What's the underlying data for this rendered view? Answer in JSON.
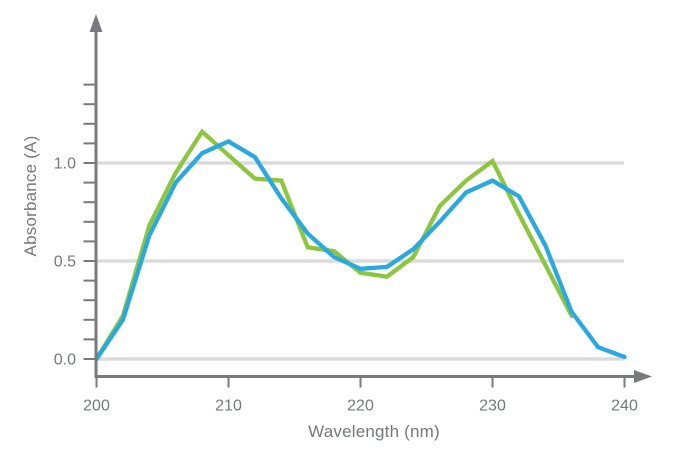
{
  "chart_data": {
    "type": "line",
    "title": "",
    "xlabel": "Wavelength (nm)",
    "ylabel": "Absorbance (A)",
    "xlim": [
      200,
      240
    ],
    "ylim": [
      0,
      1.45
    ],
    "grid": "horizontal only",
    "legend_position": "none",
    "gridlines_at": [
      0,
      0.5,
      1.0
    ],
    "x_ticks": [
      {
        "value": 200,
        "label": "200"
      },
      {
        "value": 210,
        "label": "210"
      },
      {
        "value": 220,
        "label": "220"
      },
      {
        "value": 230,
        "label": "230"
      },
      {
        "value": 240,
        "label": "240"
      }
    ],
    "y_ticks_labeled": [
      {
        "value": 0,
        "label": "0.0"
      },
      {
        "value": 0.5,
        "label": "0.5"
      },
      {
        "value": 1.0,
        "label": "1.0"
      }
    ],
    "y_minor_tick_step": 0.1,
    "y_minor_tick_max": 1.4,
    "series": [
      {
        "name": "green-spectrum",
        "color": "#8CC63F",
        "points": [
          [
            200,
            0.0
          ],
          [
            202,
            0.22
          ],
          [
            204,
            0.68
          ],
          [
            206,
            0.95
          ],
          [
            208,
            1.16
          ],
          [
            210,
            1.04
          ],
          [
            212,
            0.92
          ],
          [
            214,
            0.91
          ],
          [
            216,
            0.57
          ],
          [
            218,
            0.55
          ],
          [
            220,
            0.44
          ],
          [
            222,
            0.42
          ],
          [
            224,
            0.52
          ],
          [
            226,
            0.78
          ],
          [
            228,
            0.91
          ],
          [
            230,
            1.01
          ],
          [
            232,
            0.74
          ],
          [
            234,
            0.48
          ],
          [
            236,
            0.22
          ]
        ]
      },
      {
        "name": "blue-spectrum",
        "color": "#29A9E0",
        "points": [
          [
            200,
            0.0
          ],
          [
            202,
            0.2
          ],
          [
            204,
            0.63
          ],
          [
            206,
            0.9
          ],
          [
            208,
            1.05
          ],
          [
            210,
            1.11
          ],
          [
            212,
            1.03
          ],
          [
            214,
            0.82
          ],
          [
            216,
            0.64
          ],
          [
            218,
            0.52
          ],
          [
            220,
            0.46
          ],
          [
            222,
            0.47
          ],
          [
            224,
            0.56
          ],
          [
            226,
            0.7
          ],
          [
            228,
            0.85
          ],
          [
            230,
            0.91
          ],
          [
            232,
            0.83
          ],
          [
            234,
            0.58
          ],
          [
            236,
            0.24
          ],
          [
            238,
            0.06
          ],
          [
            240,
            0.01
          ]
        ]
      }
    ]
  },
  "colors": {
    "background": "#FFFFFF",
    "axis": "#797A7D",
    "grid": "#DBDBDB",
    "tick_text": "#75787B",
    "series_green": "#8CC63F",
    "series_blue": "#29A9E0"
  }
}
